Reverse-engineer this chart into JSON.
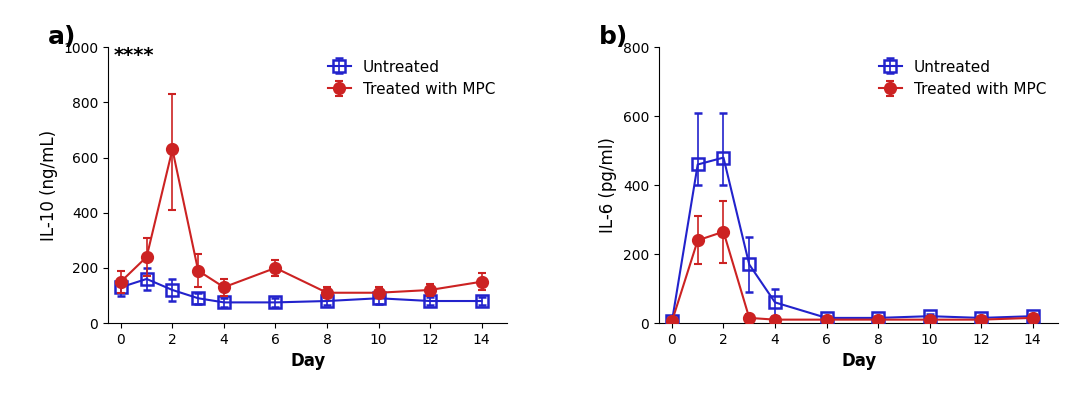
{
  "panel_a": {
    "label": "a)",
    "ylabel": "IL-10 (ng/mL)",
    "xlabel": "Day",
    "ylim": [
      0,
      1000
    ],
    "yticks": [
      0,
      200,
      400,
      600,
      800,
      1000
    ],
    "xticks": [
      0,
      2,
      4,
      6,
      8,
      10,
      12,
      14
    ],
    "annotation": "****",
    "untreated": {
      "x": [
        0,
        1,
        2,
        3,
        4,
        6,
        8,
        10,
        12,
        14
      ],
      "y": [
        130,
        160,
        120,
        90,
        75,
        75,
        80,
        90,
        80,
        80
      ],
      "yerr_lo": [
        30,
        40,
        40,
        20,
        15,
        15,
        15,
        20,
        15,
        15
      ],
      "yerr_hi": [
        30,
        40,
        40,
        20,
        15,
        15,
        15,
        20,
        15,
        15
      ],
      "color": "#2222cc",
      "marker": "s",
      "markersize": 8,
      "linewidth": 1.5
    },
    "treated": {
      "x": [
        0,
        1,
        2,
        3,
        4,
        6,
        8,
        10,
        12,
        14
      ],
      "y": [
        150,
        240,
        630,
        190,
        130,
        200,
        110,
        110,
        120,
        150
      ],
      "yerr_lo": [
        40,
        70,
        220,
        60,
        30,
        30,
        20,
        20,
        20,
        30
      ],
      "yerr_hi": [
        40,
        70,
        200,
        60,
        30,
        30,
        20,
        20,
        20,
        30
      ],
      "color": "#cc2222",
      "marker": "o",
      "markersize": 8,
      "linewidth": 1.5
    }
  },
  "panel_b": {
    "label": "b)",
    "ylabel": "IL-6 (pg/ml)",
    "xlabel": "Day",
    "ylim": [
      0,
      800
    ],
    "yticks": [
      0,
      200,
      400,
      600,
      800
    ],
    "xticks": [
      0,
      2,
      4,
      6,
      8,
      10,
      12,
      14
    ],
    "untreated": {
      "x": [
        0,
        1,
        2,
        3,
        4,
        6,
        8,
        10,
        12,
        14
      ],
      "y": [
        5,
        460,
        480,
        170,
        60,
        15,
        15,
        20,
        15,
        20
      ],
      "yerr_lo": [
        5,
        60,
        80,
        80,
        40,
        5,
        5,
        5,
        5,
        5
      ],
      "yerr_hi": [
        5,
        150,
        130,
        80,
        40,
        5,
        5,
        5,
        5,
        5
      ],
      "color": "#2222cc",
      "marker": "s",
      "markersize": 8,
      "linewidth": 1.5
    },
    "treated": {
      "x": [
        0,
        1,
        2,
        3,
        4,
        6,
        8,
        10,
        12,
        14
      ],
      "y": [
        5,
        240,
        265,
        15,
        10,
        10,
        10,
        10,
        10,
        15
      ],
      "yerr_lo": [
        5,
        70,
        90,
        10,
        5,
        5,
        5,
        5,
        5,
        5
      ],
      "yerr_hi": [
        5,
        70,
        90,
        10,
        5,
        5,
        5,
        5,
        5,
        5
      ],
      "color": "#cc2222",
      "marker": "o",
      "markersize": 8,
      "linewidth": 1.5
    }
  },
  "legend_untreated": "Untreated",
  "legend_treated": "Treated with MPC",
  "background_color": "#ffffff",
  "panel_label_fontsize": 18,
  "axis_label_fontsize": 12,
  "tick_fontsize": 10,
  "legend_fontsize": 11
}
